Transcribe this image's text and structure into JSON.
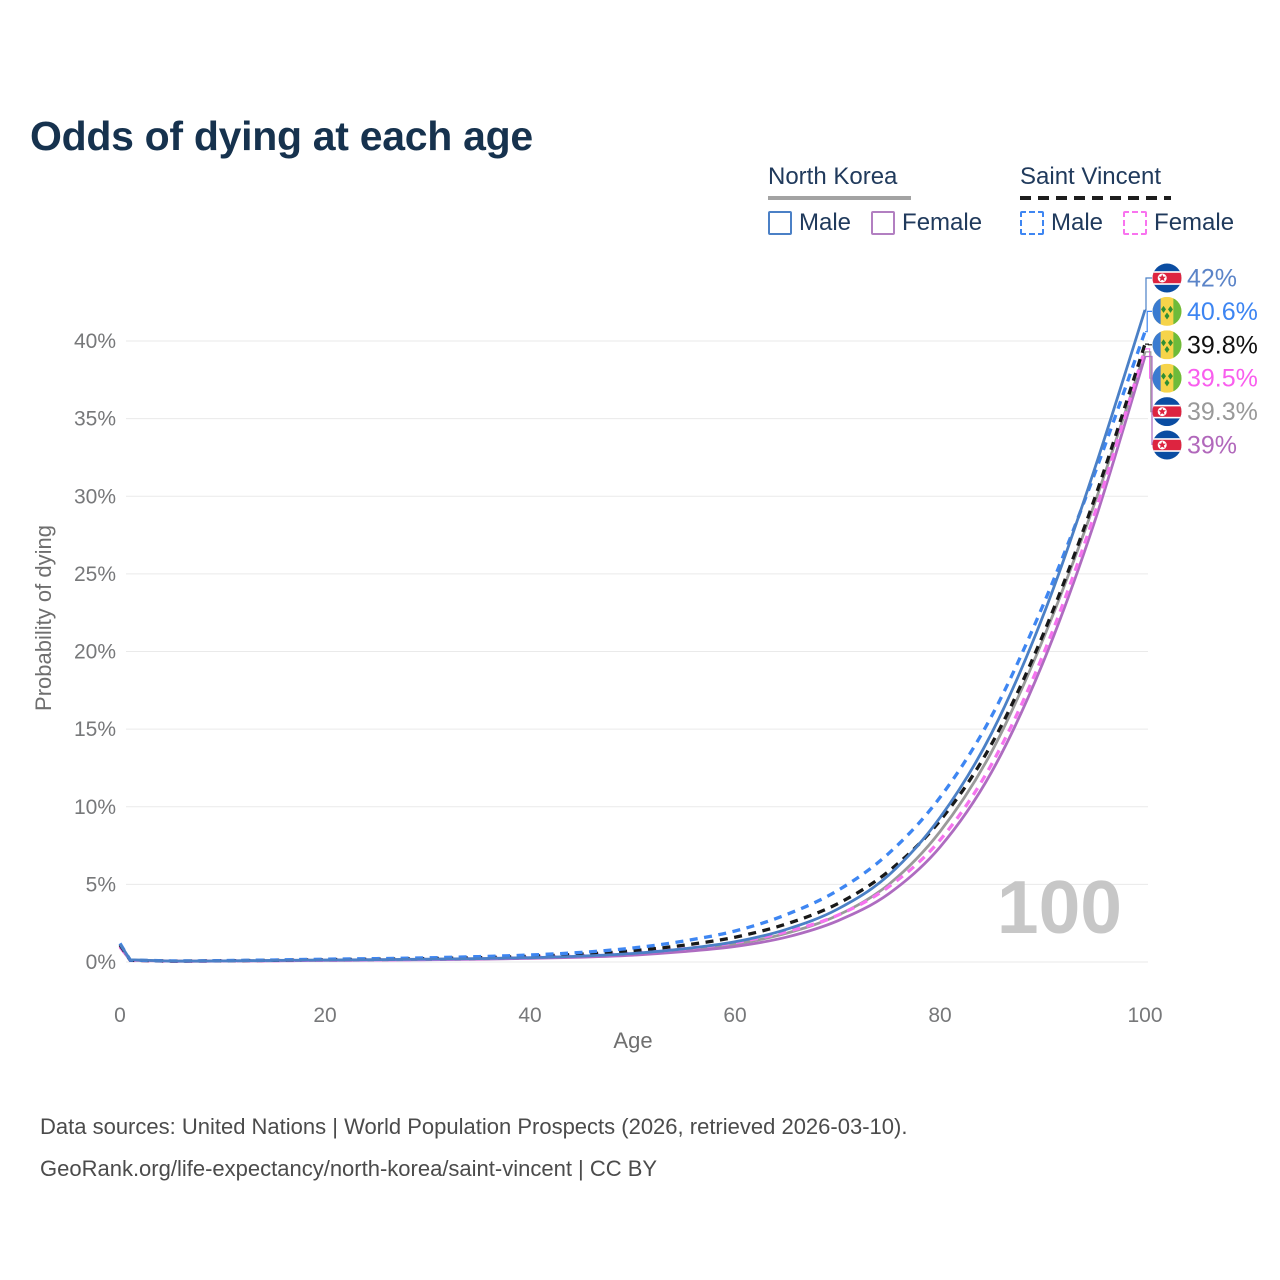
{
  "title": "Odds of dying at each age",
  "legend": {
    "groups": [
      {
        "name": "North Korea",
        "line_style": "solid",
        "underline_color": "#a3a3a3",
        "items": [
          {
            "label": "Male",
            "color": "#4b80c6"
          },
          {
            "label": "Female",
            "color": "#b27fc1"
          }
        ]
      },
      {
        "name": "Saint Vincent",
        "line_style": "dashed",
        "underline_color": "#1d1d1d",
        "items": [
          {
            "label": "Male",
            "color": "#3e86f2"
          },
          {
            "label": "Female",
            "color": "#f973ef"
          }
        ]
      }
    ]
  },
  "chart_data": {
    "type": "line",
    "title": "Odds of dying at each age",
    "xlabel": "Age",
    "ylabel": "Probability of dying",
    "xlim": [
      0,
      100
    ],
    "ylim": [
      0,
      43.5
    ],
    "x_ticks": [
      0,
      20,
      40,
      60,
      80,
      100
    ],
    "y_ticks": [
      "0%",
      "5%",
      "10%",
      "15%",
      "20%",
      "25%",
      "30%",
      "35%",
      "40%"
    ],
    "grid": "horizontal",
    "legend_position": "top-right",
    "watermark": "100",
    "ages": [
      0,
      1,
      5,
      10,
      15,
      20,
      25,
      30,
      35,
      40,
      45,
      50,
      55,
      60,
      65,
      70,
      75,
      80,
      85,
      90,
      95,
      100
    ],
    "series": [
      {
        "id": "north-korea-both",
        "name": "North Korea Both sexes",
        "country": "North Korea",
        "sex": "both",
        "style": "solid",
        "color": "#9a9a9a",
        "flag": "nk",
        "end_label": "39.3%",
        "label_color": "#999999",
        "label_slot": 4,
        "values": [
          1.05,
          0.13,
          0.055,
          0.065,
          0.09,
          0.12,
          0.14,
          0.17,
          0.21,
          0.26,
          0.35,
          0.5,
          0.76,
          1.15,
          1.85,
          3.0,
          5.0,
          8.4,
          13.5,
          20.7,
          29.4,
          39.3
        ]
      },
      {
        "id": "north-korea-female",
        "name": "North Korea Female",
        "country": "North Korea",
        "sex": "female",
        "style": "solid",
        "color": "#ae6cc0",
        "flag": "nk",
        "end_label": "39%",
        "label_color": "#b168bb",
        "label_slot": 5,
        "values": [
          0.95,
          0.11,
          0.05,
          0.06,
          0.08,
          0.1,
          0.12,
          0.15,
          0.18,
          0.23,
          0.31,
          0.44,
          0.67,
          1.0,
          1.6,
          2.65,
          4.4,
          7.4,
          12.2,
          19.2,
          28.2,
          39.0
        ]
      },
      {
        "id": "saint-vincent-female",
        "name": "Saint Vincent Female",
        "country": "Saint Vincent",
        "sex": "female",
        "style": "dashed",
        "color": "#f673ef",
        "flag": "sv",
        "end_label": "39.5%",
        "label_color": "#f95eee",
        "label_slot": 3,
        "values": [
          1.0,
          0.1,
          0.05,
          0.07,
          0.09,
          0.12,
          0.14,
          0.17,
          0.22,
          0.29,
          0.4,
          0.57,
          0.85,
          1.25,
          1.95,
          3.0,
          4.85,
          7.85,
          12.7,
          19.7,
          28.7,
          39.5
        ]
      },
      {
        "id": "saint-vincent-both",
        "name": "Saint Vincent Both sexes",
        "country": "Saint Vincent",
        "sex": "both",
        "style": "dashed",
        "color": "#191919",
        "flag": "sv",
        "end_label": "39.8%",
        "label_color": "#111111",
        "label_slot": 2,
        "values": [
          1.1,
          0.11,
          0.06,
          0.08,
          0.11,
          0.15,
          0.18,
          0.22,
          0.28,
          0.37,
          0.5,
          0.72,
          1.08,
          1.6,
          2.45,
          3.75,
          5.85,
          9.1,
          14.0,
          21.0,
          29.7,
          39.8
        ]
      },
      {
        "id": "saint-vincent-male",
        "name": "Saint Vincent Male",
        "country": "Saint Vincent",
        "sex": "male",
        "style": "dashed",
        "color": "#3e86f2",
        "flag": "sv",
        "end_label": "40.6%",
        "label_color": "#3d85f2",
        "label_slot": 1,
        "values": [
          1.2,
          0.12,
          0.07,
          0.09,
          0.13,
          0.18,
          0.22,
          0.27,
          0.35,
          0.45,
          0.62,
          0.9,
          1.35,
          2.0,
          3.05,
          4.6,
          7.0,
          10.6,
          15.8,
          22.9,
          31.3,
          40.6
        ]
      },
      {
        "id": "north-korea-male",
        "name": "North Korea Male",
        "country": "North Korea",
        "sex": "male",
        "style": "solid",
        "color": "#4b80c6",
        "flag": "nk",
        "end_label": "42%",
        "label_color": "#5b84c8",
        "label_slot": 0,
        "values": [
          1.15,
          0.14,
          0.06,
          0.07,
          0.1,
          0.13,
          0.15,
          0.18,
          0.22,
          0.28,
          0.38,
          0.55,
          0.85,
          1.3,
          2.1,
          3.4,
          5.6,
          9.3,
          14.7,
          22.2,
          31.6,
          42.0
        ]
      }
    ]
  },
  "footer": {
    "line1": "Data sources: United Nations | World Population Prospects (2026, retrieved 2026-03-10).",
    "line2": "GeoRank.org/life-expectancy/north-korea/saint-vincent | CC BY"
  }
}
